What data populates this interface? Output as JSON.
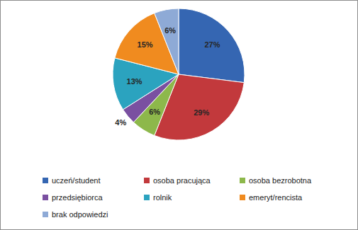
{
  "chart_data": {
    "type": "pie",
    "categories": [
      "uczeń/student",
      "osoba pracująca",
      "osoba bezrobotna",
      "przedsiębiorca",
      "rolnik",
      "emeryt/rencista",
      "brak odpowiedzi"
    ],
    "values": [
      27,
      29,
      6,
      4,
      13,
      15,
      6
    ],
    "value_labels": [
      "27%",
      "29%",
      "6%",
      "4%",
      "13%",
      "15%",
      "6%"
    ],
    "colors": [
      "#3566b2",
      "#c2393c",
      "#8db84b",
      "#7a50a1",
      "#2ba3bf",
      "#f08b1f",
      "#8eaad6"
    ],
    "data_labels": true,
    "legend": "bottom"
  }
}
